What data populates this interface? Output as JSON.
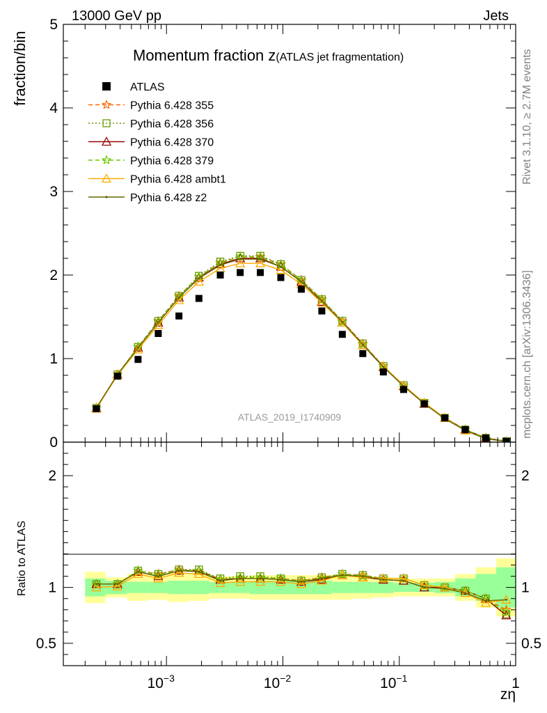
{
  "header": {
    "left": "13000 GeV pp",
    "right": "Jets"
  },
  "side": {
    "rivet": "Rivet 3.1.10, ≥ 2.7M events",
    "mcplots": "mcplots.cern.ch [arXiv:1306.3436]"
  },
  "watermark": "ATLAS_2019_I1740909",
  "chart_data": [
    {
      "type": "scatter",
      "title_main": "Momentum fraction ",
      "title_var": "z",
      "title_sub": "(ATLAS jet fragmentation)",
      "ylabel": "fraction/bin",
      "xscale": "log",
      "xlim": [
        0.00013,
        1
      ],
      "ylim": [
        0,
        5
      ],
      "yticks": [
        0,
        1,
        2,
        3,
        4,
        5
      ],
      "legend_position": "top-left",
      "x": [
        0.00025,
        0.00038,
        0.00057,
        0.00085,
        0.00128,
        0.0019,
        0.0029,
        0.0043,
        0.0064,
        0.0096,
        0.0144,
        0.0216,
        0.0324,
        0.0486,
        0.073,
        0.109,
        0.164,
        0.246,
        0.369,
        0.553,
        0.83
      ],
      "series": [
        {
          "name": "ATLAS",
          "color": "#000000",
          "marker": "square",
          "values": [
            0.4,
            0.79,
            0.99,
            1.3,
            1.51,
            1.72,
            2.0,
            2.03,
            2.03,
            1.97,
            1.83,
            1.57,
            1.29,
            1.06,
            0.84,
            0.63,
            0.46,
            0.29,
            0.15,
            0.05,
            0.01
          ]
        },
        {
          "name": "Pythia 6.428 355",
          "color": "#ff6600",
          "marker": "star",
          "dash": "6,4",
          "values": [
            0.41,
            0.81,
            1.14,
            1.45,
            1.75,
            1.98,
            2.15,
            2.22,
            2.22,
            2.13,
            1.94,
            1.71,
            1.45,
            1.18,
            0.91,
            0.68,
            0.47,
            0.29,
            0.15,
            0.05,
            0.01
          ]
        },
        {
          "name": "Pythia 6.428 356",
          "color": "#669900",
          "marker": "open-square",
          "dash": "2,3",
          "values": [
            0.41,
            0.81,
            1.14,
            1.45,
            1.75,
            1.99,
            2.16,
            2.23,
            2.23,
            2.13,
            1.94,
            1.71,
            1.45,
            1.18,
            0.91,
            0.68,
            0.47,
            0.29,
            0.15,
            0.05,
            0.01
          ]
        },
        {
          "name": "Pythia 6.428 370",
          "color": "#990000",
          "marker": "open-triangle",
          "dash": "",
          "values": [
            0.41,
            0.81,
            1.13,
            1.43,
            1.73,
            1.97,
            2.13,
            2.2,
            2.2,
            2.1,
            1.92,
            1.68,
            1.43,
            1.16,
            0.9,
            0.67,
            0.46,
            0.29,
            0.15,
            0.05,
            0.01
          ]
        },
        {
          "name": "Pythia 6.428 379",
          "color": "#66cc00",
          "marker": "star",
          "dash": "6,4",
          "values": [
            0.41,
            0.81,
            1.14,
            1.44,
            1.74,
            1.98,
            2.14,
            2.22,
            2.21,
            2.12,
            1.93,
            1.7,
            1.44,
            1.17,
            0.91,
            0.68,
            0.47,
            0.29,
            0.15,
            0.05,
            0.01
          ]
        },
        {
          "name": "Pythia 6.428 ambt1",
          "color": "#ffaa00",
          "marker": "open-triangle",
          "dash": "",
          "values": [
            0.4,
            0.8,
            1.11,
            1.4,
            1.7,
            1.92,
            2.08,
            2.14,
            2.14,
            2.06,
            1.89,
            1.67,
            1.43,
            1.16,
            0.91,
            0.68,
            0.47,
            0.29,
            0.14,
            0.04,
            0.01
          ]
        },
        {
          "name": "Pythia 6.428 z2",
          "color": "#666600",
          "marker": "dot",
          "dash": "",
          "values": [
            0.41,
            0.81,
            1.13,
            1.43,
            1.73,
            1.96,
            2.12,
            2.19,
            2.19,
            2.1,
            1.92,
            1.69,
            1.44,
            1.17,
            0.9,
            0.67,
            0.46,
            0.28,
            0.14,
            0.04,
            0.01
          ]
        }
      ]
    },
    {
      "type": "scatter",
      "ylabel": "Ratio to ATLAS",
      "xlabel": "zη",
      "xscale": "log",
      "xlim": [
        0.00013,
        1
      ],
      "ylim": [
        0.3,
        2.3
      ],
      "yticks": [
        0.5,
        1,
        2
      ],
      "xticks": [
        0.001,
        0.01,
        0.1,
        1
      ],
      "xtick_labels": [
        "10",
        "10",
        "10",
        "1"
      ],
      "xtick_exponents": [
        "−3",
        "−2",
        "−1",
        ""
      ],
      "band_edges": [
        0.0002,
        0.0003,
        0.00046,
        0.00069,
        0.00103,
        0.00155,
        0.00233,
        0.0035,
        0.0052,
        0.0079,
        0.0118,
        0.0177,
        0.0265,
        0.0398,
        0.0597,
        0.0895,
        0.134,
        0.201,
        0.302,
        0.453,
        0.68,
        1.0
      ],
      "band_stat_lo": [
        0.92,
        0.94,
        0.95,
        0.95,
        0.94,
        0.94,
        0.95,
        0.95,
        0.94,
        0.94,
        0.94,
        0.94,
        0.95,
        0.95,
        0.95,
        0.96,
        0.96,
        0.95,
        0.92,
        0.88,
        0.82
      ],
      "band_stat_hi": [
        1.08,
        1.06,
        1.05,
        1.05,
        1.06,
        1.06,
        1.05,
        1.05,
        1.06,
        1.06,
        1.06,
        1.06,
        1.05,
        1.05,
        1.05,
        1.04,
        1.04,
        1.05,
        1.08,
        1.12,
        1.18
      ],
      "band_tot_lo": [
        0.86,
        0.91,
        0.88,
        0.89,
        0.87,
        0.88,
        0.9,
        0.9,
        0.89,
        0.89,
        0.89,
        0.89,
        0.89,
        0.9,
        0.91,
        0.92,
        0.92,
        0.92,
        0.88,
        0.82,
        0.74
      ],
      "band_tot_hi": [
        1.14,
        1.09,
        1.12,
        1.11,
        1.13,
        1.12,
        1.1,
        1.1,
        1.11,
        1.11,
        1.11,
        1.11,
        1.11,
        1.1,
        1.09,
        1.08,
        1.08,
        1.08,
        1.12,
        1.18,
        1.26
      ],
      "series": [
        {
          "name": "Pythia 6.428 355",
          "values": [
            1.03,
            1.03,
            1.15,
            1.12,
            1.16,
            1.15,
            1.07,
            1.09,
            1.09,
            1.08,
            1.06,
            1.09,
            1.12,
            1.11,
            1.08,
            1.08,
            1.02,
            1.0,
            0.97,
            0.9,
            0.8
          ]
        },
        {
          "name": "Pythia 6.428 356",
          "values": [
            1.03,
            1.03,
            1.15,
            1.12,
            1.16,
            1.16,
            1.08,
            1.1,
            1.1,
            1.08,
            1.06,
            1.09,
            1.12,
            1.11,
            1.08,
            1.08,
            1.02,
            1.0,
            0.97,
            0.9,
            0.76
          ]
        },
        {
          "name": "Pythia 6.428 370",
          "values": [
            1.03,
            1.03,
            1.14,
            1.1,
            1.15,
            1.15,
            1.07,
            1.08,
            1.08,
            1.07,
            1.05,
            1.07,
            1.11,
            1.09,
            1.07,
            1.06,
            1.0,
            1.0,
            0.97,
            0.9,
            0.75
          ]
        },
        {
          "name": "Pythia 6.428 379",
          "values": [
            1.03,
            1.03,
            1.15,
            1.11,
            1.15,
            1.15,
            1.07,
            1.09,
            1.09,
            1.08,
            1.05,
            1.08,
            1.12,
            1.1,
            1.08,
            1.08,
            1.02,
            1.0,
            0.97,
            0.9,
            0.78
          ]
        },
        {
          "name": "Pythia 6.428 ambt1",
          "values": [
            1.0,
            1.01,
            1.12,
            1.08,
            1.13,
            1.12,
            1.04,
            1.05,
            1.05,
            1.05,
            1.03,
            1.06,
            1.11,
            1.09,
            1.08,
            1.08,
            1.02,
            1.0,
            0.95,
            0.86,
            0.89
          ]
        },
        {
          "name": "Pythia 6.428 z2",
          "values": [
            1.03,
            1.03,
            1.14,
            1.1,
            1.15,
            1.14,
            1.06,
            1.08,
            1.08,
            1.07,
            1.05,
            1.08,
            1.11,
            1.1,
            1.07,
            1.06,
            1.0,
            0.99,
            0.95,
            0.88,
            0.89
          ]
        }
      ]
    }
  ]
}
